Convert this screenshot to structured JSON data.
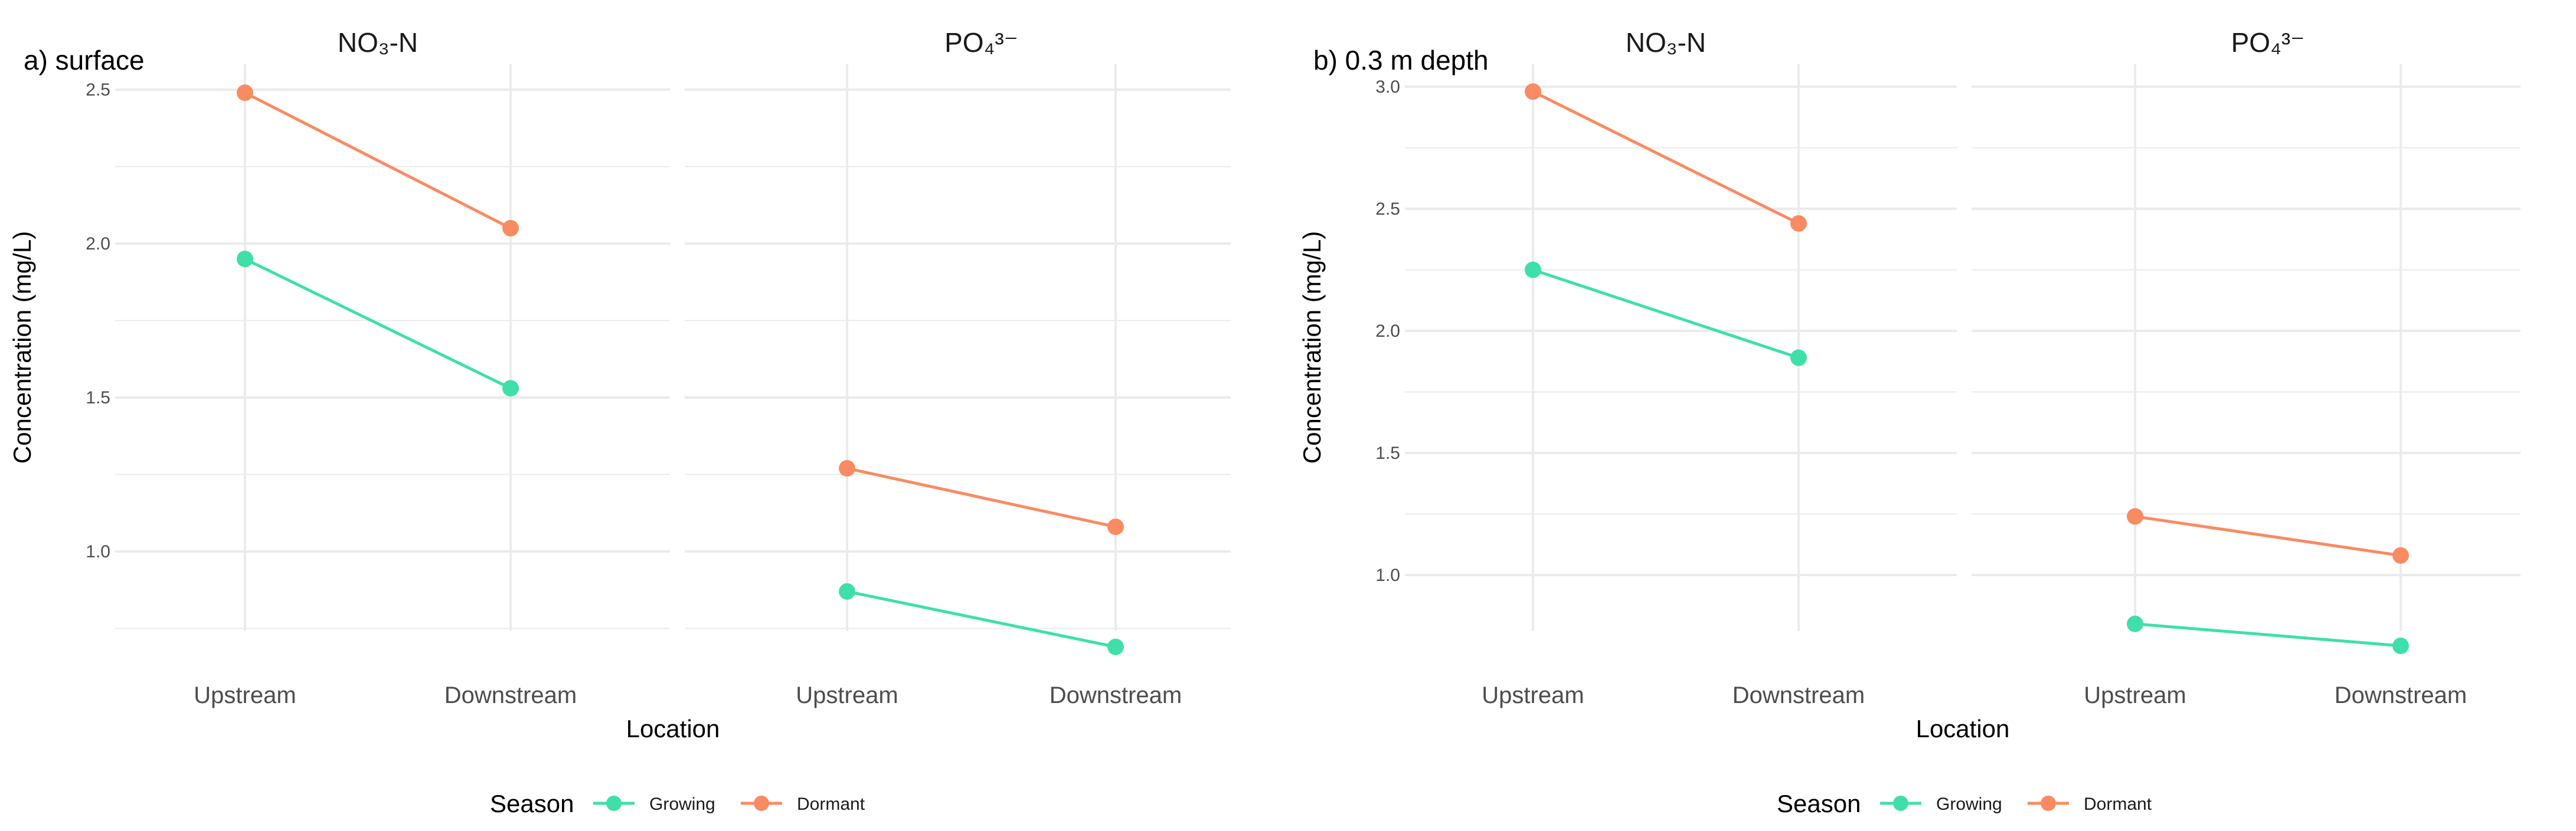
{
  "colors": {
    "growing": "#3fe0a8",
    "dormant": "#f98b63",
    "grid": "#ebebeb"
  },
  "chart_data": [
    {
      "type": "line",
      "panel_label": "a)  surface",
      "ylabel": "Concentration (mg/L)",
      "xlabel": "Location",
      "ylim": [
        0.7,
        2.62
      ],
      "yticks": [
        "1.0",
        "1.5",
        "2.0",
        "2.5"
      ],
      "categories": [
        "Upstream",
        "Downstream"
      ],
      "legend": {
        "title": "Season",
        "entries": [
          "Growing",
          "Dormant"
        ]
      },
      "facets": [
        {
          "title": "NO₃-N",
          "series": [
            {
              "name": "Growing",
              "values": [
                1.95,
                1.53
              ]
            },
            {
              "name": "Dormant",
              "values": [
                2.49,
                2.05
              ]
            }
          ]
        },
        {
          "title": "PO₄³⁻",
          "series": [
            {
              "name": "Growing",
              "values": [
                0.87,
                0.69
              ]
            },
            {
              "name": "Dormant",
              "values": [
                1.27,
                1.08
              ]
            }
          ]
        }
      ]
    },
    {
      "type": "line",
      "panel_label": "b) 0.3 m depth",
      "ylabel": "Concentration (mg/L)",
      "xlabel": "Location",
      "ylim": [
        0.66,
        3.12
      ],
      "yticks": [
        "1.0",
        "1.5",
        "2.0",
        "2.5",
        "3.0"
      ],
      "categories": [
        "Upstream",
        "Downstream"
      ],
      "legend": {
        "title": "Season",
        "entries": [
          "Growing",
          "Dormant"
        ]
      },
      "facets": [
        {
          "title": "NO₃-N",
          "series": [
            {
              "name": "Growing",
              "values": [
                2.25,
                1.89
              ]
            },
            {
              "name": "Dormant",
              "values": [
                2.98,
                2.44
              ]
            }
          ]
        },
        {
          "title": "PO₄³⁻",
          "series": [
            {
              "name": "Growing",
              "values": [
                0.8,
                0.71
              ]
            },
            {
              "name": "Dormant",
              "values": [
                1.24,
                1.08
              ]
            }
          ]
        }
      ]
    }
  ]
}
